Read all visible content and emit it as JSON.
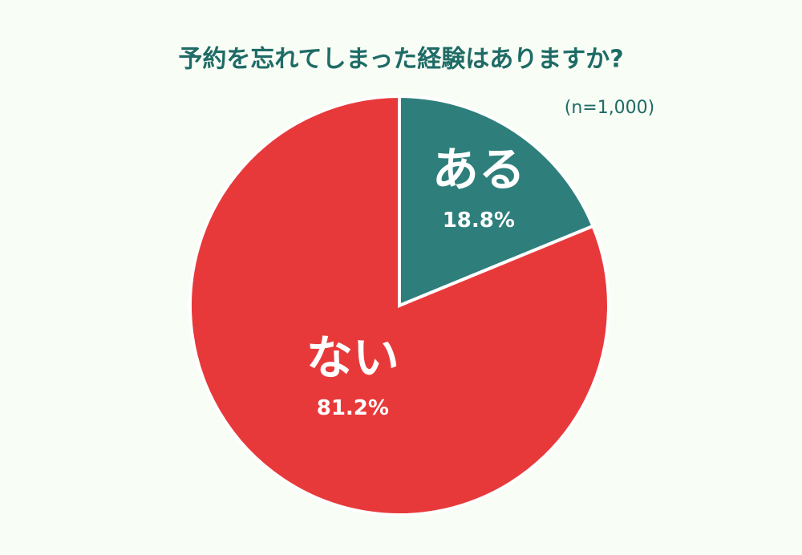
{
  "chart_data": {
    "type": "pie",
    "title": "予約を忘れてしまった経験はありますか?",
    "subtitle": "(n=1,000)",
    "categories": [
      "ある",
      "ない"
    ],
    "values": [
      18.8,
      81.2
    ],
    "value_labels": [
      "18.8%",
      "81.2%"
    ],
    "colors": [
      "#2e7f7c",
      "#e8393a"
    ]
  }
}
